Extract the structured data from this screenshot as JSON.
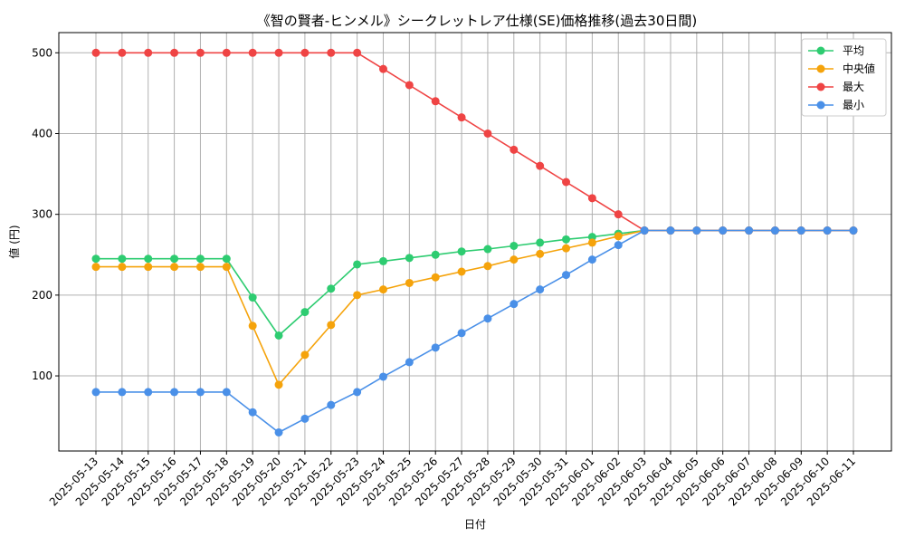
{
  "chart_data": {
    "type": "line",
    "title": "《智の賢者-ヒンメル》シークレットレア仕様(SE)価格推移(過去30日間)",
    "xlabel": "日付",
    "ylabel": "値 (円)",
    "ylim": [
      7,
      525
    ],
    "yticks": [
      100,
      200,
      300,
      400,
      500
    ],
    "grid": true,
    "legend_position": "top-right",
    "categories": [
      "2025-05-13",
      "2025-05-14",
      "2025-05-15",
      "2025-05-16",
      "2025-05-17",
      "2025-05-18",
      "2025-05-19",
      "2025-05-20",
      "2025-05-21",
      "2025-05-22",
      "2025-05-23",
      "2025-05-24",
      "2025-05-25",
      "2025-05-26",
      "2025-05-27",
      "2025-05-28",
      "2025-05-29",
      "2025-05-30",
      "2025-05-31",
      "2025-06-01",
      "2025-06-02",
      "2025-06-03",
      "2025-06-04",
      "2025-06-05",
      "2025-06-06",
      "2025-06-07",
      "2025-06-08",
      "2025-06-09",
      "2025-06-10",
      "2025-06-11"
    ],
    "series": [
      {
        "name": "平均",
        "color": "#2ecc71",
        "values": [
          245,
          245,
          245,
          245,
          245,
          245,
          197,
          150,
          179,
          208,
          238,
          242,
          246,
          250,
          254,
          257,
          261,
          265,
          269,
          272,
          276,
          280,
          280,
          280,
          280,
          280,
          280,
          280,
          280,
          280
        ]
      },
      {
        "name": "中央値",
        "color": "#f5a30b",
        "values": [
          235,
          235,
          235,
          235,
          235,
          235,
          162,
          89,
          126,
          163,
          200,
          207,
          215,
          222,
          229,
          236,
          244,
          251,
          258,
          265,
          273,
          280,
          280,
          280,
          280,
          280,
          280,
          280,
          280,
          280
        ]
      },
      {
        "name": "最大",
        "color": "#ef4444",
        "values": [
          500,
          500,
          500,
          500,
          500,
          500,
          500,
          500,
          500,
          500,
          500,
          480,
          460,
          440,
          420,
          400,
          380,
          360,
          340,
          320,
          300,
          280,
          280,
          280,
          280,
          280,
          280,
          280,
          280,
          280
        ]
      },
      {
        "name": "最小",
        "color": "#4a90e8",
        "values": [
          80,
          80,
          80,
          80,
          80,
          80,
          55,
          30,
          47,
          64,
          80,
          99,
          117,
          135,
          153,
          171,
          189,
          207,
          225,
          244,
          262,
          280,
          280,
          280,
          280,
          280,
          280,
          280,
          280,
          280
        ]
      }
    ]
  }
}
